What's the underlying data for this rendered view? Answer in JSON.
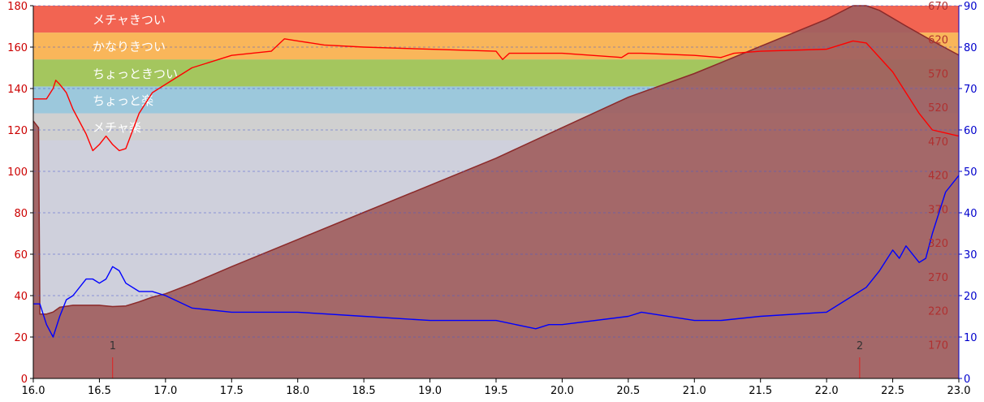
{
  "chart_data": {
    "type": "line",
    "xlabel": "",
    "x_tick_suffix": "",
    "xlim": [
      16.0,
      23.0
    ],
    "x_ticks": [
      "16.0",
      "16.5",
      "17.0",
      "17.5",
      "18.0",
      "18.5",
      "19.0",
      "19.5",
      "20.0",
      "20.5",
      "21.0",
      "21.5",
      "22.0",
      "22.5",
      "23.0"
    ],
    "axes": {
      "left": {
        "range": [
          0,
          180
        ],
        "ticks": [
          "0",
          "20",
          "40",
          "60",
          "80",
          "100",
          "120",
          "140",
          "160",
          "180"
        ],
        "color": "#cc0000"
      },
      "right1": {
        "range": [
          120,
          670
        ],
        "ticks": [
          "170",
          "220",
          "270",
          "320",
          "370",
          "420",
          "470",
          "520",
          "570",
          "620",
          "670"
        ],
        "color": "#b03030"
      },
      "right2": {
        "range": [
          0,
          90
        ],
        "ticks": [
          "0",
          "10",
          "20",
          "30",
          "40",
          "50",
          "60",
          "70",
          "80",
          "90"
        ],
        "color": "#0000cc"
      }
    },
    "grid": true,
    "zones": [
      {
        "label": "メチャきつい",
        "from": 167,
        "to": 180,
        "color": "#f26452"
      },
      {
        "label": "かなりきつい",
        "from": 154,
        "to": 167,
        "color": "#f9b65a"
      },
      {
        "label": "ちょっときつい",
        "from": 141,
        "to": 154,
        "color": "#a4c65e"
      },
      {
        "label": "ちょっと楽",
        "from": 128,
        "to": 141,
        "color": "#9cc8dc"
      },
      {
        "label": "メチャ楽",
        "from": 115,
        "to": 128,
        "color": "#d0d0d0"
      }
    ],
    "markers": [
      {
        "label": "1",
        "x": 16.6
      },
      {
        "label": "2",
        "x": 22.25
      }
    ],
    "series": [
      {
        "axis": "right1",
        "style": "area",
        "color": "#8b2a2a",
        "fill": "#a06060",
        "x": [
          16.0,
          16.04,
          16.05,
          16.1,
          16.15,
          16.2,
          16.3,
          16.5,
          16.6,
          16.7,
          16.8,
          16.9,
          17.0,
          17.2,
          17.5,
          18.0,
          18.5,
          19.0,
          19.5,
          20.0,
          20.5,
          21.0,
          21.5,
          22.0,
          22.2,
          22.3,
          22.4,
          22.6,
          22.8,
          23.0
        ],
        "values": [
          500,
          490,
          215,
          215,
          218,
          225,
          228,
          228,
          226,
          227,
          233,
          240,
          245,
          260,
          285,
          325,
          365,
          405,
          445,
          490,
          535,
          570,
          610,
          650,
          670,
          670,
          663,
          640,
          618,
          597
        ]
      },
      {
        "axis": "left",
        "style": "line",
        "color": "#ff0000",
        "x": [
          16.0,
          16.1,
          16.15,
          16.17,
          16.2,
          16.25,
          16.3,
          16.4,
          16.45,
          16.5,
          16.55,
          16.6,
          16.65,
          16.7,
          16.8,
          16.9,
          17.0,
          17.2,
          17.5,
          17.8,
          17.9,
          18.0,
          18.2,
          18.5,
          19.0,
          19.5,
          19.55,
          19.6,
          20.0,
          20.45,
          20.5,
          20.6,
          21.0,
          21.2,
          21.3,
          21.5,
          22.0,
          22.2,
          22.3,
          22.5,
          22.7,
          22.8,
          23.0
        ],
        "values": [
          135,
          135,
          140,
          144,
          142,
          138,
          130,
          118,
          110,
          113,
          117,
          113,
          110,
          111,
          128,
          138,
          142,
          150,
          156,
          158,
          164,
          163,
          161,
          160,
          159,
          158,
          154,
          157,
          157,
          155,
          157,
          157,
          156,
          155,
          157,
          158,
          159,
          163,
          162,
          148,
          128,
          120,
          117
        ]
      },
      {
        "axis": "right2",
        "style": "line",
        "color": "#0000ff",
        "x": [
          16.0,
          16.05,
          16.1,
          16.15,
          16.2,
          16.25,
          16.3,
          16.4,
          16.45,
          16.5,
          16.55,
          16.6,
          16.65,
          16.7,
          16.8,
          16.9,
          17.0,
          17.2,
          17.5,
          18.0,
          18.5,
          19.0,
          19.5,
          19.8,
          19.9,
          20.0,
          20.5,
          20.6,
          21.0,
          21.2,
          21.5,
          22.0,
          22.2,
          22.3,
          22.4,
          22.5,
          22.55,
          22.6,
          22.7,
          22.75,
          22.8,
          22.9,
          23.0
        ],
        "values": [
          18,
          18,
          13,
          10,
          15,
          19,
          20,
          24,
          24,
          23,
          24,
          27,
          26,
          23,
          21,
          21,
          20,
          17,
          16,
          16,
          15,
          14,
          14,
          12,
          13,
          13,
          15,
          16,
          14,
          14,
          15,
          16,
          20,
          22,
          26,
          31,
          29,
          32,
          28,
          29,
          35,
          45,
          49
        ]
      }
    ]
  }
}
